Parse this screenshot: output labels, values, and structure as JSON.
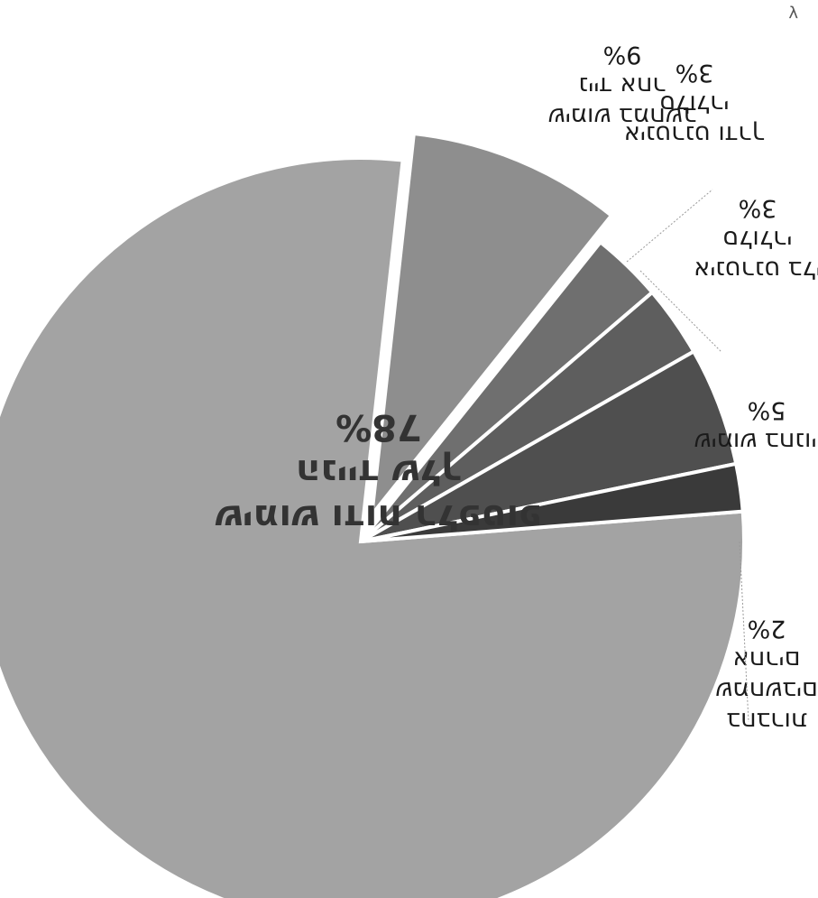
{
  "chart_data": {
    "type": "pie",
    "title": "",
    "slices": [
      {
        "lines": [
          "שימוש ודוח רלפטופ",
          "הנייד שלך"
        ],
        "value_label": "78%",
        "value": 78,
        "color": "#a3a3a3",
        "exploded": false
      },
      {
        "lines": [
          "שימוש במחשב",
          "נייד אחר"
        ],
        "value_label": "9%",
        "value": 9,
        "color": "#8e8e8e",
        "exploded": true
      },
      {
        "lines": [
          "אינטרנט ודרך",
          "סלולרי"
        ],
        "value_label": "3%",
        "value": 3,
        "color": "#6f6f6f",
        "exploded": false
      },
      {
        "lines": [
          "אינטרנט בלי",
          "סלולרי"
        ],
        "value_label": "3%",
        "value": 3,
        "color": "#5e5e5e",
        "exploded": false
      },
      {
        "lines": [
          "שימוש בחנויות"
        ],
        "value_label": "5%",
        "value": 5,
        "color": "#4f4f4f",
        "exploded": false
      },
      {
        "lines": [
          "בחברות",
          "שמחשבים",
          "אחרים"
        ],
        "value_label": "2%",
        "value": 2,
        "color": "#3a3a3a",
        "exploded": false
      }
    ]
  },
  "corner_mark": "λ"
}
